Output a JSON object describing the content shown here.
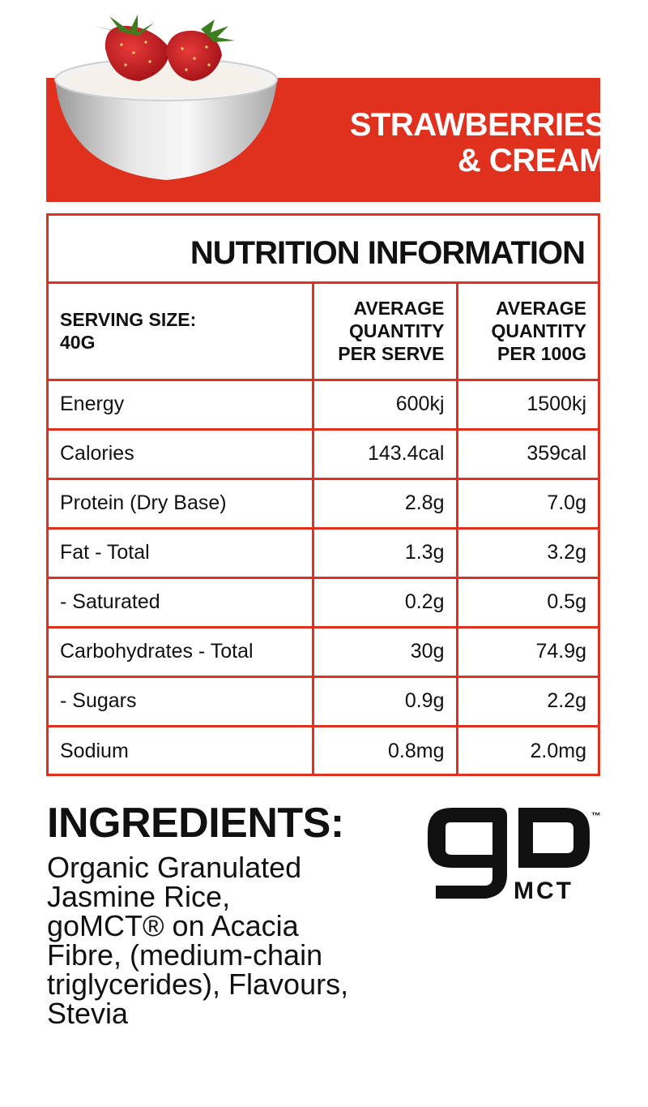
{
  "header": {
    "flavor_line1": "STRAWBERRIES",
    "flavor_line2": "& CREAM",
    "accent_color": "#e0301e"
  },
  "nutrition": {
    "title": "NUTRITION INFORMATION",
    "serving_label": "SERVING SIZE:",
    "serving_value": "40G",
    "col_serve": [
      "AVERAGE",
      "QUANTITY",
      "PER SERVE"
    ],
    "col_100g": [
      "AVERAGE",
      "QUANTITY",
      "PER 100G"
    ],
    "rows": [
      {
        "name": "Energy",
        "serve": "600kj",
        "per100": "1500kj"
      },
      {
        "name": "Calories",
        "serve": "143.4cal",
        "per100": "359cal"
      },
      {
        "name": "Protein (Dry Base)",
        "serve": "2.8g",
        "per100": "7.0g"
      },
      {
        "name": "Fat - Total",
        "serve": "1.3g",
        "per100": "3.2g"
      },
      {
        "name": "- Saturated",
        "serve": "0.2g",
        "per100": "0.5g"
      },
      {
        "name": "Carbohydrates - Total",
        "serve": "30g",
        "per100": "74.9g"
      },
      {
        "name": "- Sugars",
        "serve": "0.9g",
        "per100": "2.2g"
      },
      {
        "name": "Sodium",
        "serve": "0.8mg",
        "per100": "2.0mg"
      }
    ]
  },
  "ingredients": {
    "title": "INGREDIENTS:",
    "lines": [
      "Organic Granulated",
      "Jasmine Rice,",
      "goMCT® on Acacia",
      "Fibre, (medium-chain",
      "triglycerides), Flavours,",
      "Stevia"
    ]
  },
  "logo": {
    "brand": "go",
    "sub": "MCT",
    "tm": "™"
  }
}
